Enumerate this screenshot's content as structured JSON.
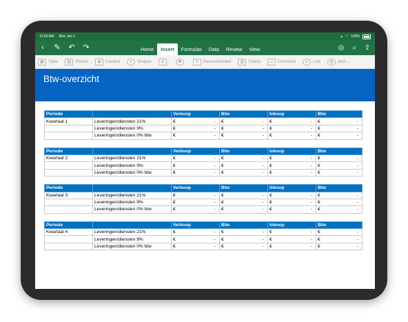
{
  "status": {
    "time": "12:00 AM",
    "date": "Mon Jan 1",
    "battery": "100%"
  },
  "ribbon_tabs": [
    {
      "label": "Home"
    },
    {
      "label": "Insert"
    },
    {
      "label": "Formulas"
    },
    {
      "label": "Data"
    },
    {
      "label": "Review"
    },
    {
      "label": "View"
    }
  ],
  "active_tab": "Insert",
  "toolbar": {
    "table": "Table",
    "photos": "Photos",
    "camera": "Camera",
    "shapes": "Shapes",
    "recommended": "Recommended",
    "charts": "Charts",
    "comment": "Comment",
    "link": "Link",
    "addins": "Add-..."
  },
  "sheet": {
    "title": "Btw-overzicht",
    "headers": [
      "Periode",
      "",
      "Verkoop",
      "Btw",
      "Inkoop",
      "Btw"
    ],
    "currency_symbol": "€",
    "empty_value": "-",
    "rows": [
      "Leveringen/diensten 21%",
      "Leveringen/diensten 9%",
      "Leveringen/diensten 0% btw"
    ],
    "quarters": [
      "Kwartaal 1",
      "Kwartaal 2",
      "Kwartaal 3",
      "Kwartaal 4"
    ]
  }
}
